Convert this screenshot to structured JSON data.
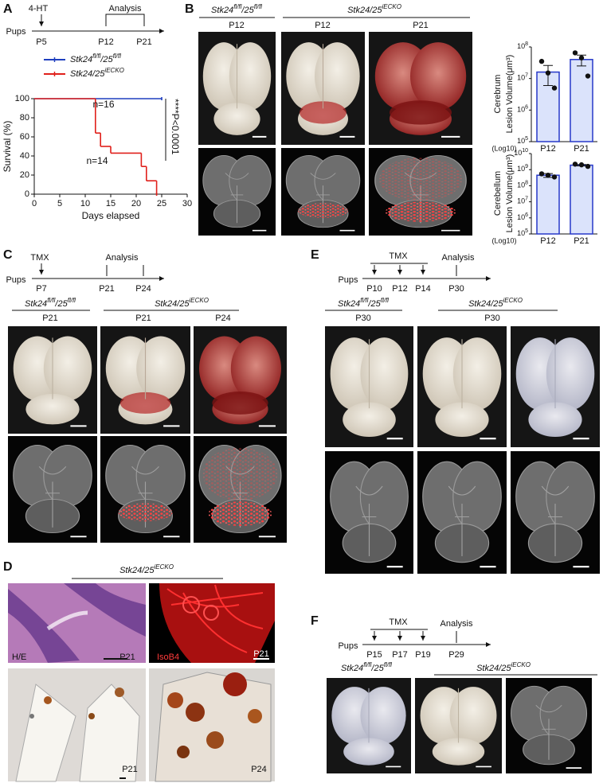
{
  "panel_a": {
    "label": "A",
    "timeline": {
      "group": "Pups",
      "treatment": "4-HT",
      "analysis": "Analysis",
      "days": [
        "P5",
        "P12",
        "P21"
      ]
    },
    "survival": {
      "type": "line",
      "x_label": "Days elapsed",
      "y_label": "Survival (%)",
      "xlim": [
        0,
        30
      ],
      "xticks": [
        0,
        5,
        10,
        15,
        20,
        25,
        30
      ],
      "ylim": [
        0,
        100
      ],
      "yticks": [
        0,
        20,
        40,
        60,
        80,
        100
      ],
      "series": [
        {
          "name": [
            "Stk24",
            "fl/fl",
            "/25",
            "fl/fl"
          ],
          "color": "#1f3fbf",
          "x": [
            0,
            25
          ],
          "values": [
            100,
            100
          ]
        },
        {
          "name": [
            "Stk24/25",
            "iECKO"
          ],
          "color": "#e0201b",
          "x": [
            0,
            12,
            13,
            15,
            21,
            22,
            24
          ],
          "values": [
            100,
            64,
            50,
            43,
            29,
            14,
            0
          ]
        }
      ],
      "annotations": {
        "n_control": "n=16",
        "n_ko": "n=14",
        "p_value": "****P<0.0001"
      }
    }
  },
  "panel_b": {
    "label": "B",
    "control_genotype": [
      "Stk24",
      "fl/fl",
      "/25",
      "fl/fl"
    ],
    "ko_genotype": [
      "Stk24/25",
      "iECKO"
    ],
    "ages": [
      "P12",
      "P12",
      "P21"
    ],
    "charts": [
      {
        "type": "bar",
        "y_label": [
          "Cerebrum",
          "Lesion Volume(μm³)"
        ],
        "axis_note": "(Log10)",
        "categories": [
          "P12",
          "P21"
        ],
        "values": [
          16000000,
          40000000
        ],
        "errors": [
          10000000,
          15000000
        ],
        "points": [
          [
            35000000,
            15000000,
            5000000
          ],
          [
            65000000,
            45000000,
            12000000
          ]
        ],
        "color": "#2638c9",
        "fill": "#dbe3fb",
        "log_scale": true,
        "ylim": [
          100000,
          100000000
        ],
        "yticks": [
          {
            "value": 100000,
            "label": "10",
            "exponent": "5"
          },
          {
            "value": 1000000,
            "label": "10",
            "exponent": "6"
          },
          {
            "value": 10000000,
            "label": "10",
            "exponent": "7"
          },
          {
            "value": 100000000,
            "label": "10",
            "exponent": "8"
          }
        ]
      },
      {
        "type": "bar",
        "y_label": [
          "Cerebellum",
          "Lesion Volume(μm³)"
        ],
        "axis_note": "(Log10)",
        "categories": [
          "P12",
          "P21"
        ],
        "values": [
          450000000,
          1900000000
        ],
        "errors": [
          120000000,
          200000000
        ],
        "points": [
          [
            550000000,
            450000000,
            350000000
          ],
          [
            2200000000,
            2000000000,
            1600000000
          ]
        ],
        "color": "#2638c9",
        "fill": "#dbe3fb",
        "log_scale": true,
        "ylim": [
          100000,
          10000000000
        ],
        "yticks": [
          {
            "value": 100000,
            "label": "10",
            "exponent": "5"
          },
          {
            "value": 1000000,
            "label": "10",
            "exponent": "6"
          },
          {
            "value": 10000000,
            "label": "10",
            "exponent": "7"
          },
          {
            "value": 100000000,
            "label": "10",
            "exponent": "8"
          },
          {
            "value": 1000000000,
            "label": "10",
            "exponent": "9"
          },
          {
            "value": 10000000000,
            "label": "10",
            "exponent": "10"
          }
        ]
      }
    ]
  },
  "panel_c": {
    "label": "C",
    "timeline": {
      "group": "Pups",
      "treatment": "TMX",
      "analysis": "Analysis",
      "days": [
        "P7",
        "P21",
        "P24"
      ]
    },
    "control_genotype": [
      "Stk24",
      "fl/fl",
      "/25",
      "fl/fl"
    ],
    "ko_genotype": [
      "Stk24/25",
      "iECKO"
    ],
    "ages": [
      "P21",
      "P21",
      "P24"
    ]
  },
  "panel_d": {
    "label": "D",
    "ko_genotype": [
      "Stk24/25",
      "iECKO"
    ],
    "captions": {
      "he": "H/E",
      "isob4": "IsoB4",
      "ages": [
        "P21",
        "P21",
        "P21",
        "P24"
      ]
    }
  },
  "panel_e": {
    "label": "E",
    "timeline": {
      "group": "Pups",
      "treatment": "TMX",
      "analysis": "Analysis",
      "days": [
        "P10",
        "P12",
        "P14",
        "P30"
      ]
    },
    "control_genotype": [
      "Stk24",
      "fl/fl",
      "/25",
      "fl/fl"
    ],
    "ko_genotype": [
      "Stk24/25",
      "iECKO"
    ],
    "ages": [
      "P30",
      "P30"
    ]
  },
  "panel_f": {
    "label": "F",
    "timeline": {
      "group": "Pups",
      "treatment": "TMX",
      "analysis": "Analysis",
      "days": [
        "P15",
        "P17",
        "P19",
        "P29"
      ]
    },
    "control_genotype": [
      "Stk24",
      "fl/fl",
      "/25",
      "fl/fl"
    ],
    "ko_genotype": [
      "Stk24/25",
      "iECKO"
    ]
  }
}
